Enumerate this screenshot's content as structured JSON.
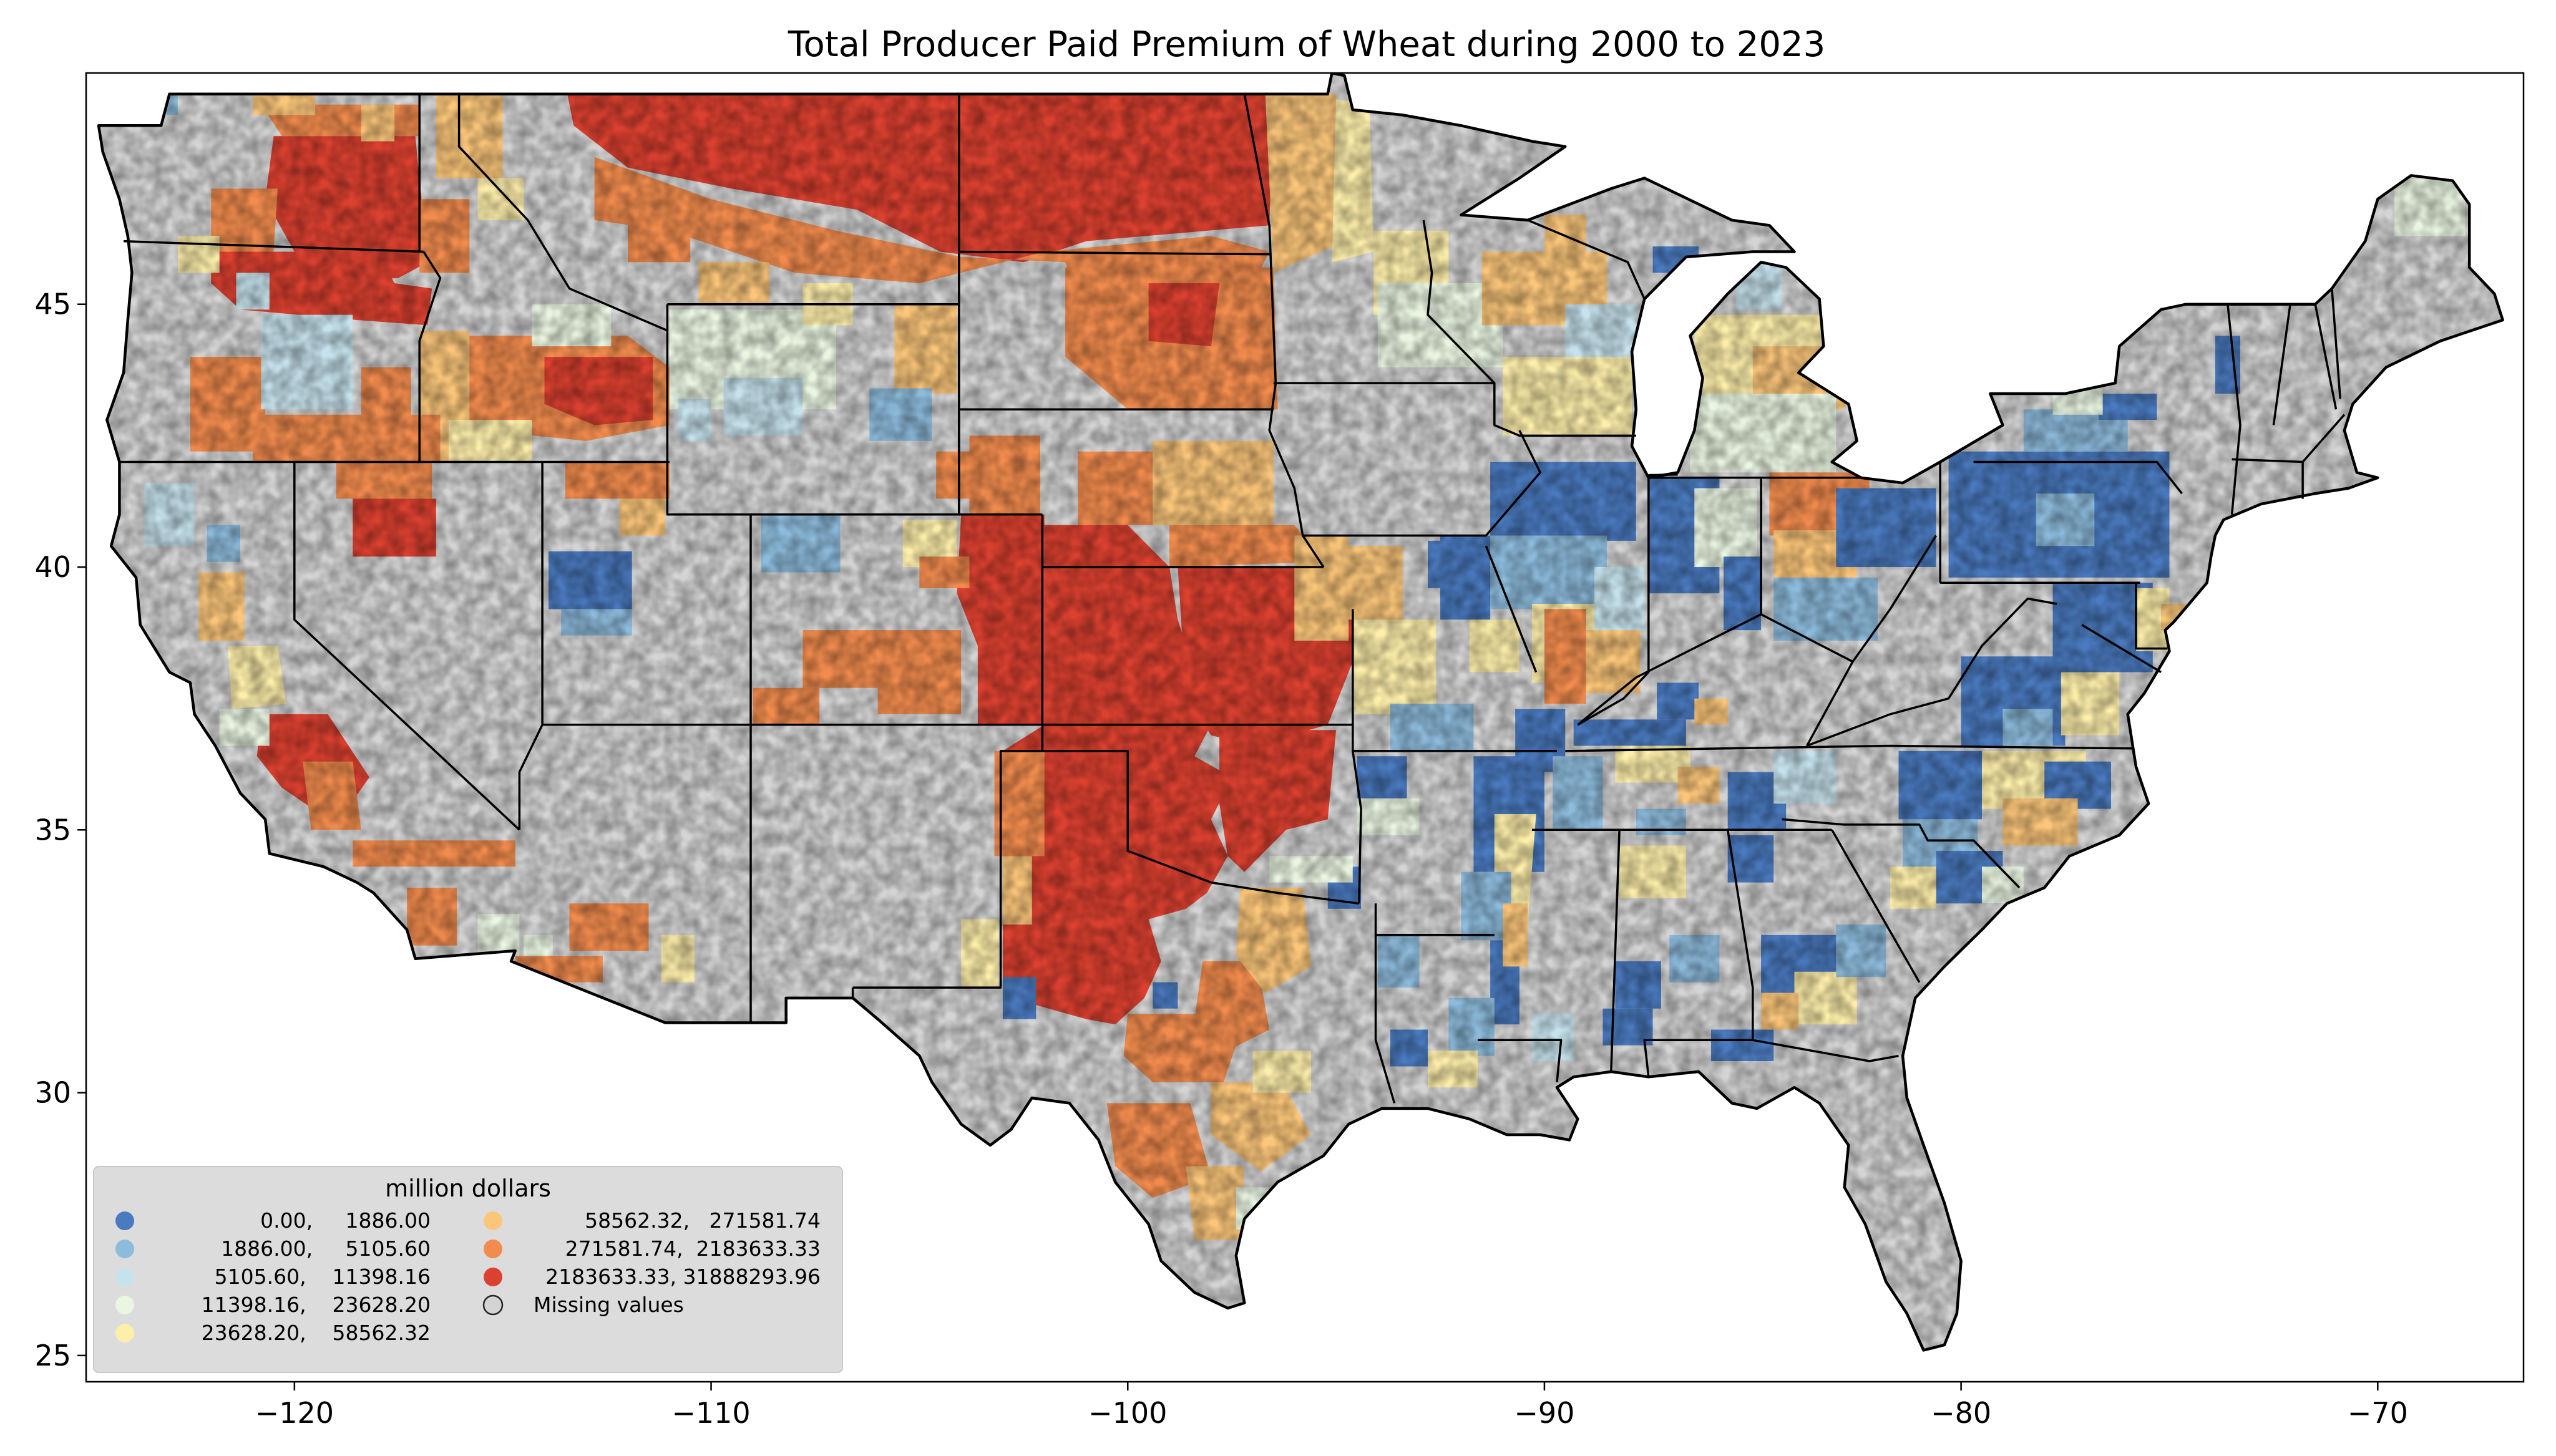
{
  "title": "Total Producer Paid Premium of Wheat during 2000 to 2023",
  "x_axis": {
    "ticks": [
      {
        "value": -120,
        "label": "−120"
      },
      {
        "value": -110,
        "label": "−110"
      },
      {
        "value": -100,
        "label": "−100"
      },
      {
        "value": -90,
        "label": "−90"
      },
      {
        "value": -80,
        "label": "−80"
      },
      {
        "value": -70,
        "label": "−70"
      }
    ],
    "range": [
      -125,
      -66.5
    ]
  },
  "y_axis": {
    "ticks": [
      {
        "value": 45,
        "label": "45"
      },
      {
        "value": 40,
        "label": "40"
      },
      {
        "value": 35,
        "label": "35"
      },
      {
        "value": 30,
        "label": "30"
      },
      {
        "value": 25,
        "label": "25"
      }
    ],
    "range": [
      24.5,
      49.4
    ]
  },
  "legend": {
    "title": "million dollars",
    "placement": "lower-left",
    "items": [
      {
        "label": "0.00,     1886.00",
        "color": "#4a7abf"
      },
      {
        "label": "1886.00,     5105.60",
        "color": "#8dbbdc"
      },
      {
        "label": "5105.60,    11398.16",
        "color": "#c6e2ec"
      },
      {
        "label": "11398.16,    23628.20",
        "color": "#eaf6e2"
      },
      {
        "label": "23628.20,    58562.32",
        "color": "#fdeeaa"
      },
      {
        "label": "58562.32,   271581.74",
        "color": "#fbc67a"
      },
      {
        "label": "271581.74,  2183633.33",
        "color": "#f28c4e"
      },
      {
        "label": "2183633.33, 31888293.96",
        "color": "#dc4130"
      },
      {
        "label": "Missing values",
        "color": "#d4d4d4"
      }
    ]
  },
  "colors": {
    "missing": "#d4d4d4",
    "border": "#000000"
  }
}
